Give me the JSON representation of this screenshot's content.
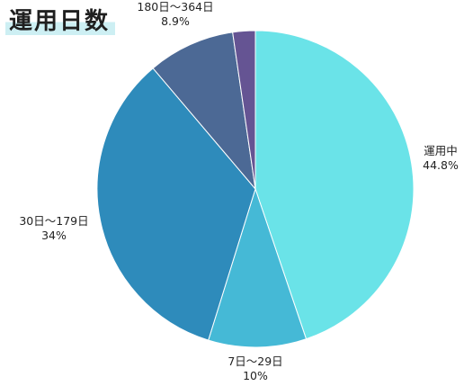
{
  "chart_data": {
    "type": "pie",
    "title": "運用日数",
    "slices": [
      {
        "label": "運用中",
        "percent_label": "44.8%",
        "value": 44.8,
        "color": "#6ae3e8"
      },
      {
        "label": "7日～29日",
        "percent_label": "10%",
        "value": 10,
        "color": "#45b9d6"
      },
      {
        "label": "30日～179日",
        "percent_label": "34%",
        "value": 34,
        "color": "#2e8bbb"
      },
      {
        "label": "180日～364日",
        "percent_label": "8.9%",
        "value": 8.9,
        "color": "#4c6995"
      },
      {
        "label": "",
        "percent_label": "",
        "value": 2.3,
        "color": "#655493"
      }
    ],
    "start": "12 o'clock",
    "direction": "clockwise",
    "legend": "none"
  }
}
